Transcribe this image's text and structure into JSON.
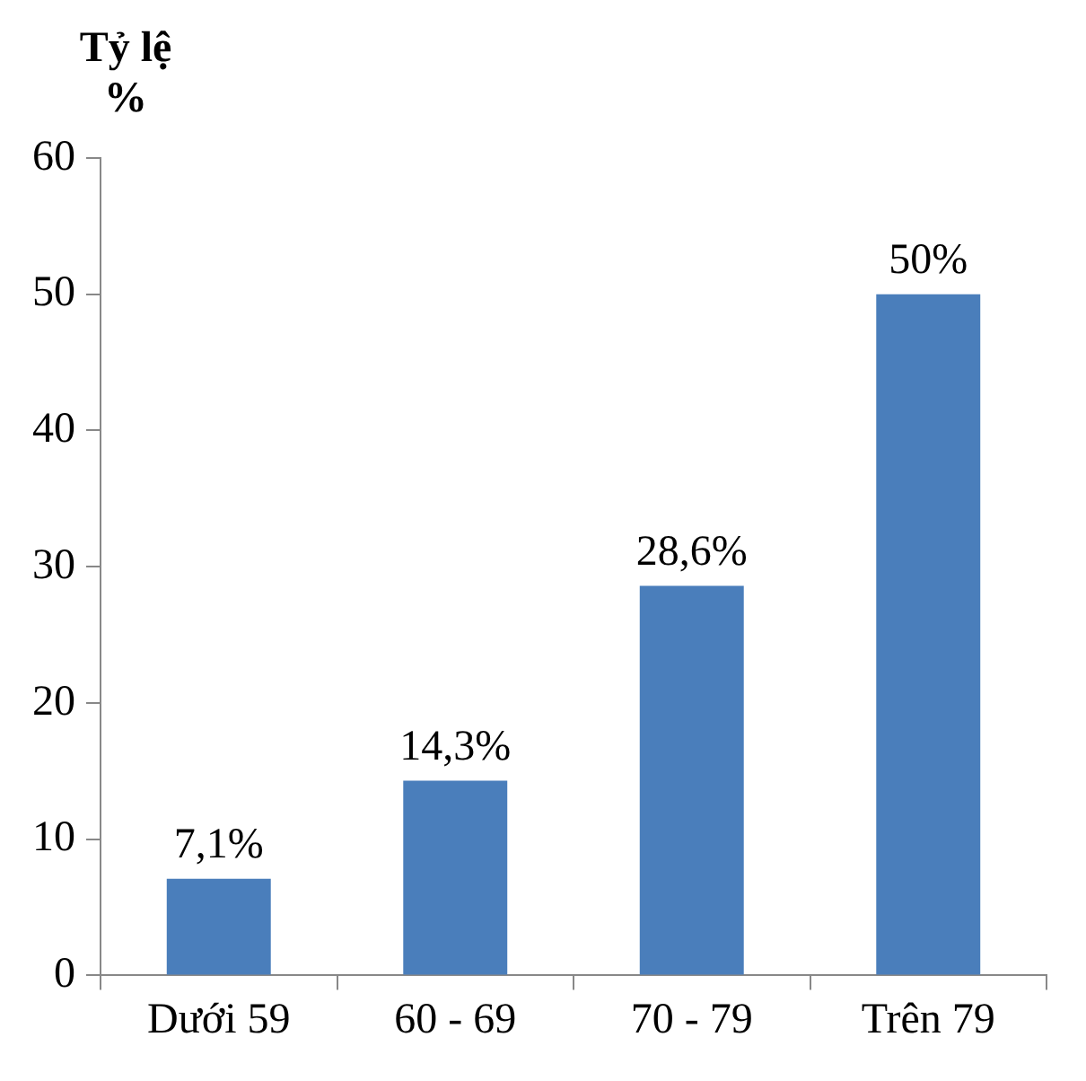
{
  "chart_data": {
    "type": "bar",
    "ylabel": "Tỷ lệ %",
    "categories": [
      "Dưới 59",
      "60 - 69",
      "70 - 79",
      "Trên 79"
    ],
    "values": [
      7.1,
      14.3,
      28.6,
      50
    ],
    "value_labels": [
      "7,1%",
      "14,3%",
      "28,6%",
      "50%"
    ],
    "color": "#4a7ebb",
    "ylim": [
      0,
      60
    ],
    "yticks": [
      0,
      10,
      20,
      30,
      40,
      50,
      60
    ],
    "grid": false,
    "legend": false
  }
}
